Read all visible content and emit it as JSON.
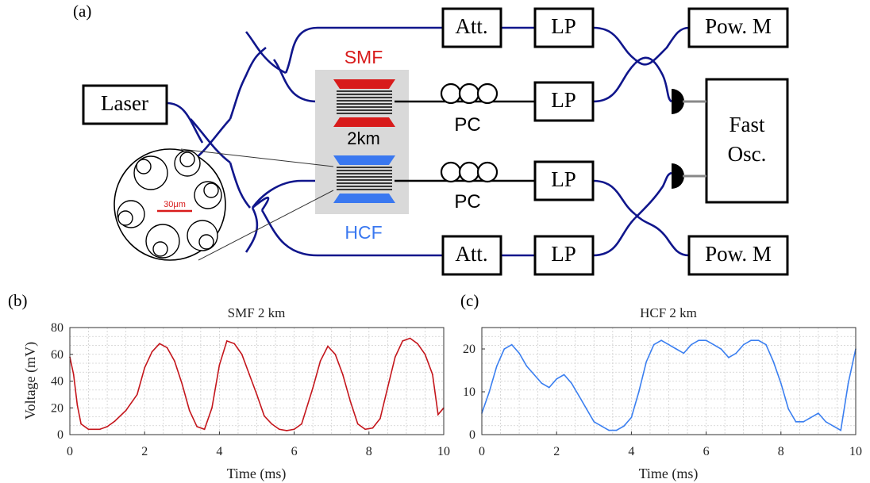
{
  "diagram": {
    "panel_label": "(a)",
    "laser": "Laser",
    "att_top": "Att.",
    "att_bottom": "Att.",
    "lp_1": "LP",
    "lp_2": "LP",
    "lp_3": "LP",
    "lp_4": "LP",
    "pow_top": "Pow. M",
    "pow_bottom": "Pow. M",
    "osc_line1": "Fast",
    "osc_line2": "Osc.",
    "smf_label": "SMF",
    "hcf_label": "HCF",
    "length_label": "2km",
    "pc_top": "PC",
    "pc_bottom": "PC",
    "scale_label": "30μm",
    "colors": {
      "fiber": "#10168c",
      "smf": "#d81b1b",
      "hcf": "#3a78f0",
      "spool_bg": "#d9d9d9"
    }
  },
  "chart_data": [
    {
      "type": "line",
      "panel_label": "(b)",
      "title": "SMF 2 km",
      "xlabel": "Time (ms)",
      "ylabel": "Voltage (mV)",
      "xlim": [
        0,
        10
      ],
      "ylim": [
        0,
        80
      ],
      "xticks": [
        0,
        2,
        4,
        6,
        8,
        10
      ],
      "yticks": [
        0,
        20,
        40,
        60,
        80
      ],
      "grid": true,
      "color": "#c4161c",
      "series": [
        {
          "x": [
            0,
            0.1,
            0.2,
            0.3,
            0.5,
            0.8,
            1.0,
            1.2,
            1.5,
            1.8,
            2.0,
            2.2,
            2.4,
            2.6,
            2.8,
            3.0,
            3.2,
            3.4,
            3.6,
            3.8,
            4.0,
            4.2,
            4.4,
            4.6,
            4.8,
            5.0,
            5.2,
            5.4,
            5.6,
            5.8,
            6.0,
            6.2,
            6.5,
            6.7,
            6.9,
            7.1,
            7.3,
            7.5,
            7.7,
            7.9,
            8.1,
            8.3,
            8.5,
            8.7,
            8.9,
            9.1,
            9.3,
            9.5,
            9.7,
            9.85,
            10.0
          ],
          "y": [
            58,
            45,
            22,
            8,
            4,
            4,
            6,
            10,
            18,
            30,
            50,
            62,
            68,
            65,
            55,
            38,
            18,
            6,
            4,
            20,
            52,
            70,
            68,
            60,
            45,
            30,
            14,
            8,
            4,
            3,
            4,
            8,
            35,
            55,
            66,
            60,
            45,
            25,
            8,
            4,
            5,
            12,
            35,
            58,
            70,
            72,
            68,
            60,
            45,
            15,
            20
          ]
        }
      ]
    },
    {
      "type": "line",
      "panel_label": "(c)",
      "title": "HCF 2 km",
      "xlabel": "Time (ms)",
      "ylabel": "",
      "xlim": [
        0,
        10
      ],
      "ylim": [
        0,
        25
      ],
      "xticks": [
        0,
        2,
        4,
        6,
        8,
        10
      ],
      "yticks": [
        0,
        10,
        20
      ],
      "grid": true,
      "color": "#3b7ff0",
      "series": [
        {
          "x": [
            0,
            0.2,
            0.4,
            0.6,
            0.8,
            1.0,
            1.2,
            1.4,
            1.6,
            1.8,
            2.0,
            2.2,
            2.4,
            2.6,
            2.8,
            3.0,
            3.2,
            3.4,
            3.6,
            3.8,
            4.0,
            4.2,
            4.4,
            4.6,
            4.8,
            5.0,
            5.2,
            5.4,
            5.6,
            5.8,
            6.0,
            6.2,
            6.4,
            6.6,
            6.8,
            7.0,
            7.2,
            7.4,
            7.6,
            7.8,
            8.0,
            8.2,
            8.4,
            8.6,
            8.8,
            9.0,
            9.2,
            9.4,
            9.6,
            9.8,
            10.0
          ],
          "y": [
            5,
            10,
            16,
            20,
            21,
            19,
            16,
            14,
            12,
            11,
            13,
            14,
            12,
            9,
            6,
            3,
            2,
            1,
            1,
            2,
            4,
            10,
            17,
            21,
            22,
            21,
            20,
            19,
            21,
            22,
            22,
            21,
            20,
            18,
            19,
            21,
            22,
            22,
            21,
            17,
            12,
            6,
            3,
            3,
            4,
            5,
            3,
            2,
            1,
            12,
            20
          ]
        }
      ]
    }
  ]
}
